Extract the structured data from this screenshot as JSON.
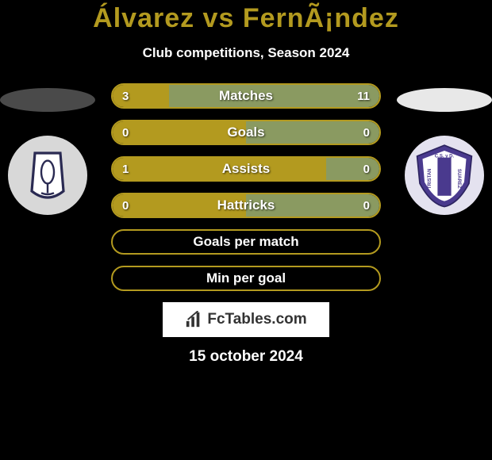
{
  "title": {
    "text": "Álvarez vs FernÃ¡ndez",
    "color": "#b39a1f",
    "fontsize": 34
  },
  "subtitle": {
    "text": "Club competitions, Season 2024",
    "fontsize": 17
  },
  "accent_color": "#b39a1f",
  "secondary_color": "#8a9a61",
  "bars": [
    {
      "label": "Matches",
      "left": "3",
      "right": "11",
      "left_pct": 21,
      "right_pct": 79
    },
    {
      "label": "Goals",
      "left": "0",
      "right": "0",
      "left_pct": 50,
      "right_pct": 50
    },
    {
      "label": "Assists",
      "left": "1",
      "right": "0",
      "left_pct": 80,
      "right_pct": 20
    },
    {
      "label": "Hattricks",
      "left": "0",
      "right": "0",
      "left_pct": 50,
      "right_pct": 50
    },
    {
      "label": "Goals per match",
      "left": "",
      "right": "",
      "left_pct": 0,
      "right_pct": 0
    },
    {
      "label": "Min per goal",
      "left": "",
      "right": "",
      "left_pct": 0,
      "right_pct": 0
    }
  ],
  "footer_brand": "FcTables.com",
  "date": "15 october 2024",
  "left_club": {
    "name": "CAB",
    "primary": "#2a2a52",
    "secondary": "#dcdcdc"
  },
  "right_club": {
    "name": "TRISTAN SUAREZ",
    "primary": "#4a3a8e",
    "secondary": "#ffffff"
  }
}
